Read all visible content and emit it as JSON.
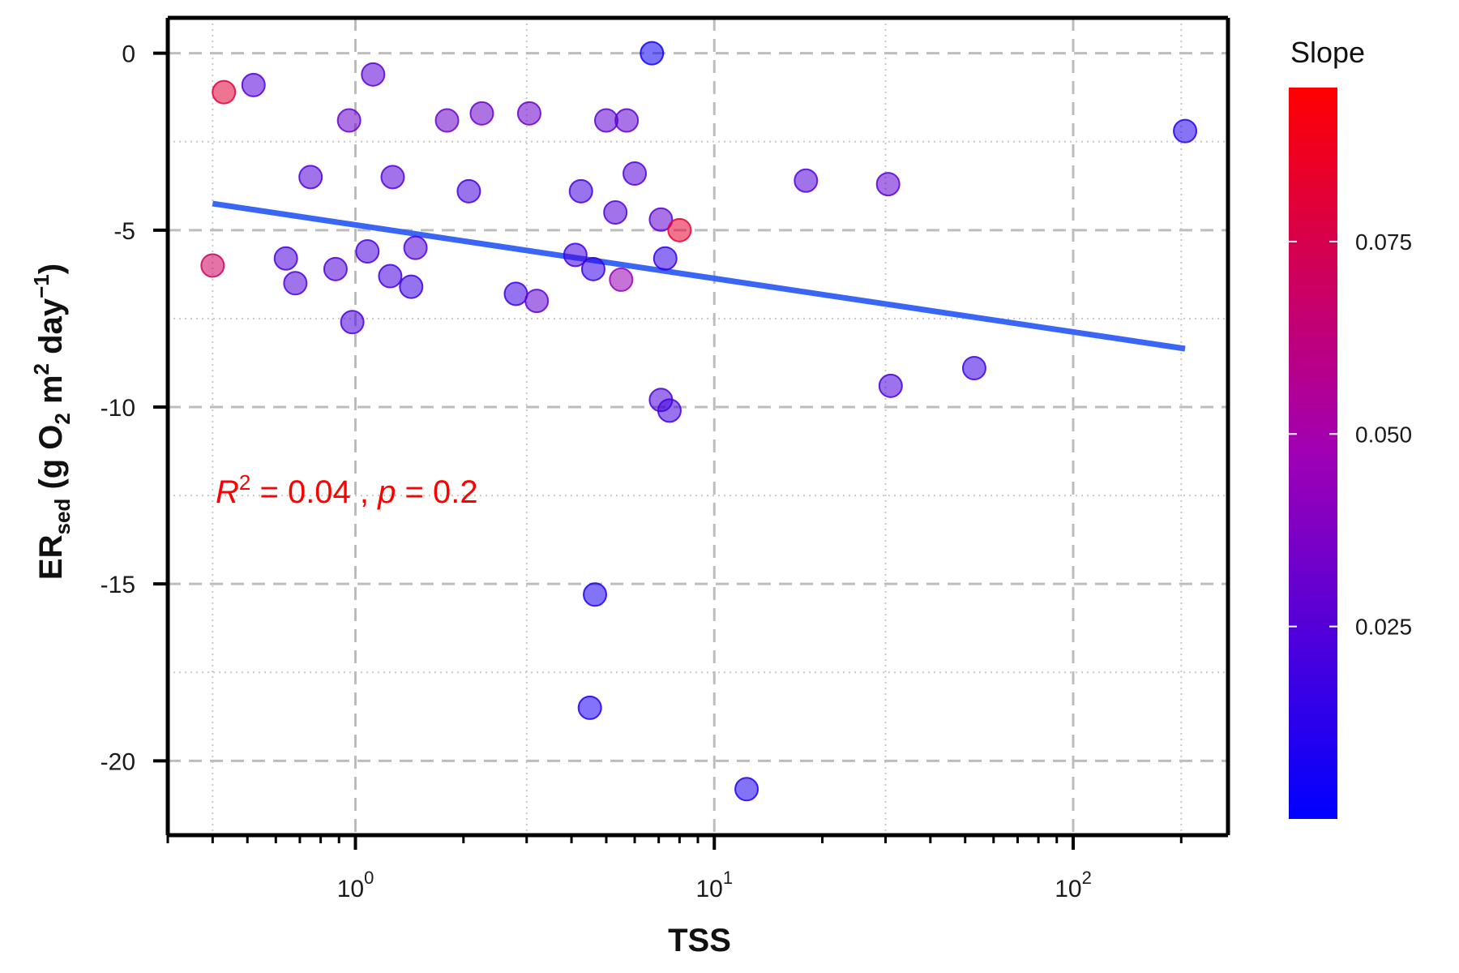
{
  "chart_data": {
    "type": "scatter",
    "xlabel": "TSS",
    "ylabel": {
      "main": "ER",
      "sub": "sed",
      "rest_1": " (g O",
      "o2_sub": "2",
      "rest_2": " m",
      "m_sup": "2",
      "rest_3": " day",
      "day_sup": "−1",
      "rest_4": ")"
    },
    "x_scale": "log10",
    "xlim": [
      0.3,
      270
    ],
    "ylim": [
      -22.1,
      1
    ],
    "x_ticks": [
      {
        "value": 1,
        "base": "10",
        "exp": "0"
      },
      {
        "value": 10,
        "base": "10",
        "exp": "1"
      },
      {
        "value": 100,
        "base": "10",
        "exp": "2"
      }
    ],
    "y_ticks": [
      {
        "value": 0,
        "label": "0"
      },
      {
        "value": -5,
        "label": "-5"
      },
      {
        "value": -10,
        "label": "-10"
      },
      {
        "value": -15,
        "label": "-15"
      },
      {
        "value": -20,
        "label": "-20"
      }
    ],
    "grid": true,
    "colorbar": {
      "title": "Slope",
      "min": 0.0,
      "max": 0.095,
      "ticks": [
        {
          "value": 0.025,
          "label": "0.025"
        },
        {
          "value": 0.05,
          "label": "0.050"
        },
        {
          "value": 0.075,
          "label": "0.075"
        }
      ],
      "colors": {
        "low": "#0000ff",
        "mid": "#a000b4",
        "high": "#ff0000"
      }
    },
    "fit_line": {
      "x": [
        0.4,
        205
      ],
      "y": [
        -4.25,
        -8.35
      ],
      "color": "#3a66f5"
    },
    "annotation": {
      "r_symbol": "R",
      "r_exp": "2",
      "r_value": " = 0.04 , ",
      "p_symbol": "p",
      "p_value": " = 0.2",
      "color": "#ff0000"
    },
    "points": [
      {
        "x": 0.43,
        "y": -1.1,
        "slope": 0.08
      },
      {
        "x": 0.4,
        "y": -6.0,
        "slope": 0.07
      },
      {
        "x": 0.52,
        "y": -0.9,
        "slope": 0.025
      },
      {
        "x": 0.64,
        "y": -5.8,
        "slope": 0.022
      },
      {
        "x": 0.68,
        "y": -6.5,
        "slope": 0.024
      },
      {
        "x": 0.75,
        "y": -3.5,
        "slope": 0.025
      },
      {
        "x": 0.88,
        "y": -6.1,
        "slope": 0.024
      },
      {
        "x": 0.96,
        "y": -1.9,
        "slope": 0.032
      },
      {
        "x": 0.98,
        "y": -7.6,
        "slope": 0.022
      },
      {
        "x": 1.08,
        "y": -5.6,
        "slope": 0.022
      },
      {
        "x": 1.12,
        "y": -0.6,
        "slope": 0.027
      },
      {
        "x": 1.25,
        "y": -6.3,
        "slope": 0.02
      },
      {
        "x": 1.27,
        "y": -3.5,
        "slope": 0.025
      },
      {
        "x": 1.43,
        "y": -6.6,
        "slope": 0.018
      },
      {
        "x": 1.47,
        "y": -5.5,
        "slope": 0.025
      },
      {
        "x": 1.8,
        "y": -1.9,
        "slope": 0.032
      },
      {
        "x": 2.07,
        "y": -3.9,
        "slope": 0.02
      },
      {
        "x": 2.25,
        "y": -1.7,
        "slope": 0.032
      },
      {
        "x": 2.8,
        "y": -6.8,
        "slope": 0.018
      },
      {
        "x": 3.05,
        "y": -1.7,
        "slope": 0.032
      },
      {
        "x": 3.2,
        "y": -7.0,
        "slope": 0.028
      },
      {
        "x": 4.1,
        "y": -5.7,
        "slope": 0.02
      },
      {
        "x": 4.25,
        "y": -3.9,
        "slope": 0.02
      },
      {
        "x": 4.6,
        "y": -6.1,
        "slope": 0.015
      },
      {
        "x": 4.65,
        "y": -15.3,
        "slope": 0.008
      },
      {
        "x": 4.5,
        "y": -18.5,
        "slope": 0.008
      },
      {
        "x": 5.0,
        "y": -1.9,
        "slope": 0.028
      },
      {
        "x": 5.3,
        "y": -4.5,
        "slope": 0.025
      },
      {
        "x": 5.5,
        "y": -6.4,
        "slope": 0.045
      },
      {
        "x": 5.7,
        "y": -1.9,
        "slope": 0.028
      },
      {
        "x": 6.0,
        "y": -3.4,
        "slope": 0.025
      },
      {
        "x": 6.7,
        "y": 0.0,
        "slope": 0.005
      },
      {
        "x": 7.1,
        "y": -4.7,
        "slope": 0.028
      },
      {
        "x": 7.1,
        "y": -9.8,
        "slope": 0.022
      },
      {
        "x": 7.3,
        "y": -5.8,
        "slope": 0.015
      },
      {
        "x": 7.5,
        "y": -10.1,
        "slope": 0.02
      },
      {
        "x": 8.0,
        "y": -5.0,
        "slope": 0.082
      },
      {
        "x": 12.3,
        "y": -20.8,
        "slope": 0.008
      },
      {
        "x": 18.0,
        "y": -3.6,
        "slope": 0.025
      },
      {
        "x": 30.5,
        "y": -3.7,
        "slope": 0.028
      },
      {
        "x": 31.0,
        "y": -9.4,
        "slope": 0.022
      },
      {
        "x": 53.0,
        "y": -8.9,
        "slope": 0.018
      },
      {
        "x": 205.0,
        "y": -2.2,
        "slope": 0.01
      }
    ]
  }
}
